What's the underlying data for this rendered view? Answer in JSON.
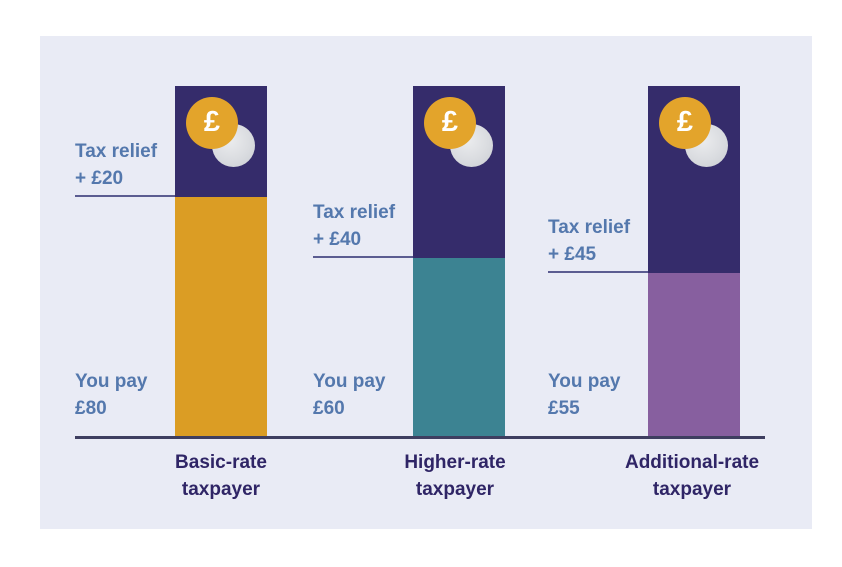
{
  "page": {
    "background": "#ffffff"
  },
  "card": {
    "background": "#e9ebf5"
  },
  "icons": {
    "pound_symbol": "£"
  },
  "chart_data": {
    "type": "bar",
    "subtype": "stacked-column",
    "title": "",
    "categories": [
      "Basic-rate taxpayer",
      "Higher-rate taxpayer",
      "Additional-rate taxpayer"
    ],
    "series": [
      {
        "name": "You pay",
        "values": [
          80,
          60,
          55
        ]
      },
      {
        "name": "Tax relief",
        "values": [
          20,
          40,
          45
        ]
      }
    ],
    "unit": "£",
    "total_per_bar": 100,
    "legend": "none",
    "grid": false,
    "bars": [
      {
        "category_line1": "Basic-rate",
        "category_line2": "taxpayer",
        "relief_label_line1": "Tax relief",
        "relief_label_line2": "+ £20",
        "pay_label_line1": "You pay",
        "pay_label_line2": "£80",
        "relief_value": 20,
        "pay_value": 80,
        "pay_color": "#db9d24"
      },
      {
        "category_line1": "Higher-rate",
        "category_line2": "taxpayer",
        "relief_label_line1": "Tax relief",
        "relief_label_line2": "+ £40",
        "pay_label_line1": "You pay",
        "pay_label_line2": "£60",
        "relief_value": 40,
        "pay_value": 60,
        "pay_color": "#3c8392"
      },
      {
        "category_line1": "Additional-rate",
        "category_line2": "taxpayer",
        "relief_label_line1": "Tax relief",
        "relief_label_line2": "+ £45",
        "pay_label_line1": "You pay",
        "pay_label_line2": "£55",
        "relief_value": 45,
        "pay_value": 55,
        "pay_color": "#875f9f"
      }
    ],
    "colors": {
      "relief_segment": "#352c6b",
      "label_blue": "#5478ad",
      "category_text": "#2f2566",
      "axis_line": "#3e3e60",
      "underline": "#5b5c91",
      "coin_gold": "#e3a42b",
      "coin_silver": "#d4d6da"
    }
  }
}
